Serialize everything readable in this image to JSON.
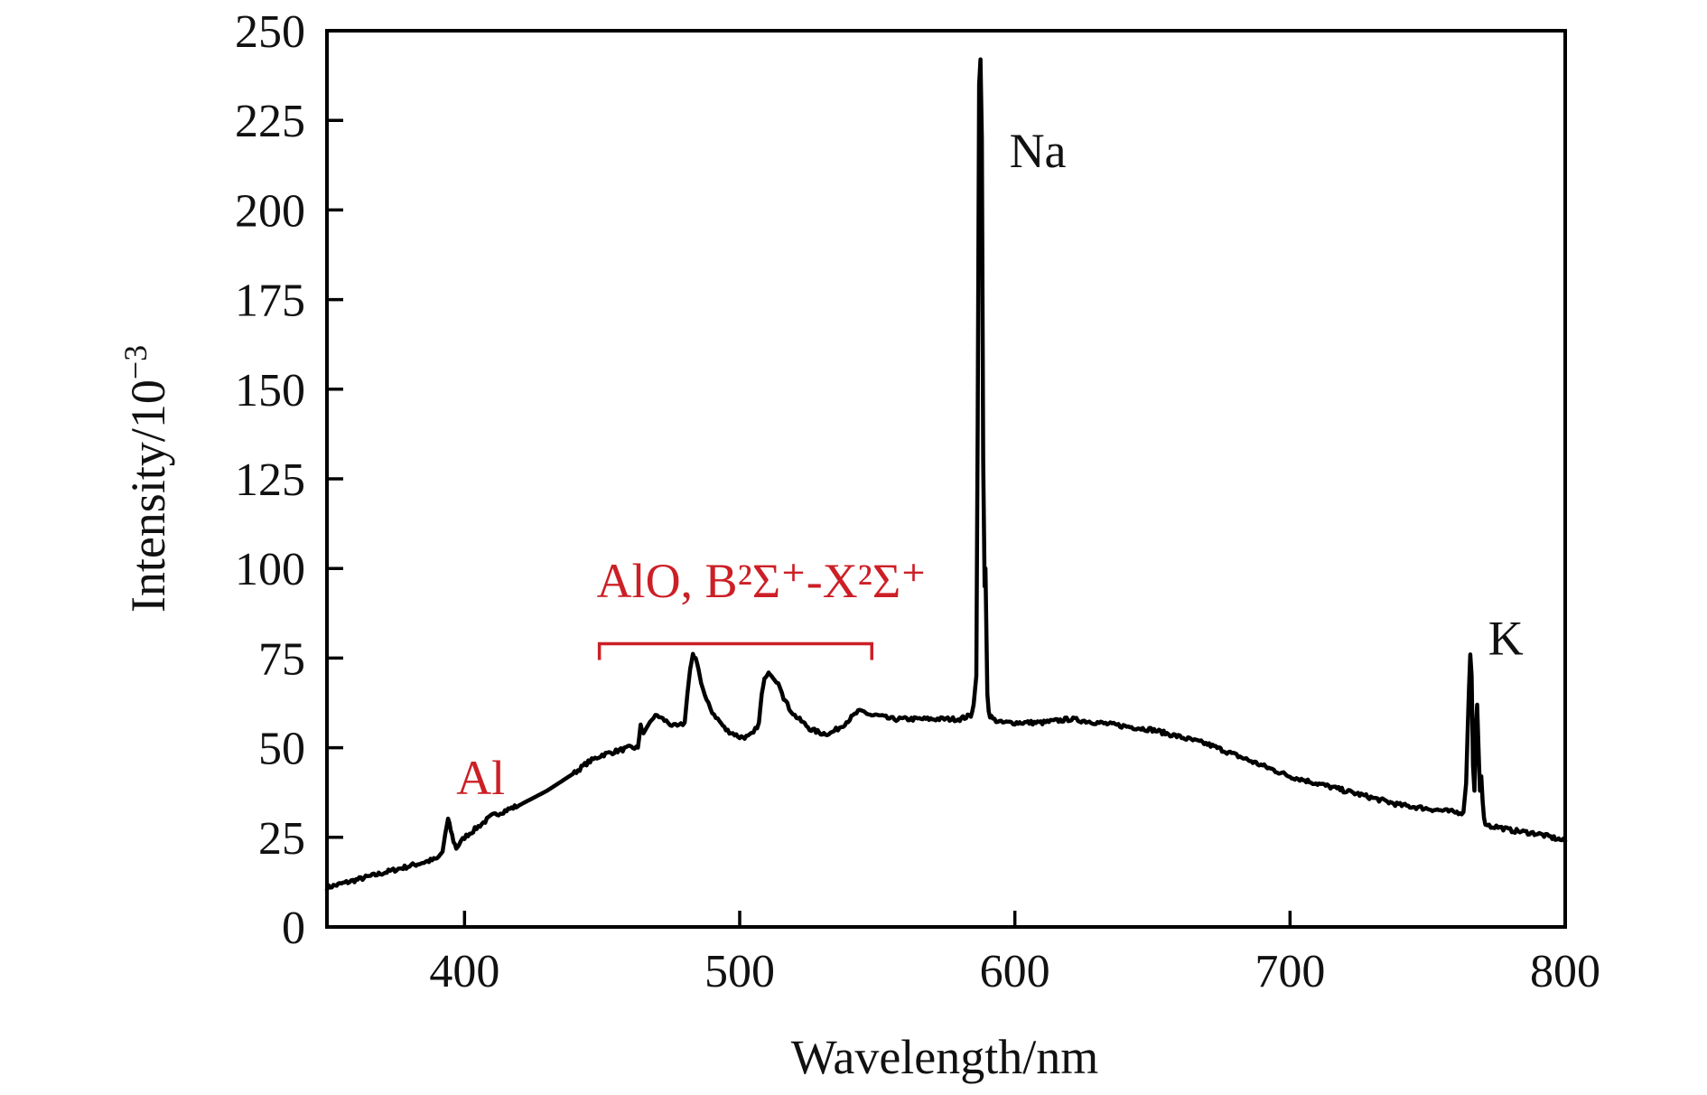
{
  "chart_data": {
    "type": "line",
    "title": "",
    "xlabel": "Wavelength/nm",
    "ylabel": "Intensity/10",
    "ylabel_exponent": "−3",
    "xlim": [
      350,
      800
    ],
    "ylim": [
      0,
      250
    ],
    "x_ticks": [
      400,
      500,
      600,
      700,
      800
    ],
    "y_ticks": [
      0,
      25,
      50,
      75,
      100,
      125,
      150,
      175,
      200,
      225,
      250
    ],
    "grid": false,
    "legend": "none",
    "line_color": "#000000",
    "annotation_color": "#cc1f26",
    "annotations": [
      {
        "id": "na",
        "text": "Na",
        "x": 598,
        "y": 212,
        "color": "#111111"
      },
      {
        "id": "k",
        "text": "K",
        "x": 772,
        "y": 76,
        "color": "#111111"
      },
      {
        "id": "al",
        "text": "Al",
        "x": 397,
        "y": 37,
        "color": "#cc1f26"
      },
      {
        "id": "alo",
        "text": "AlO, B²Σ⁺-X²Σ⁺",
        "x": 448,
        "y": 92,
        "color": "#cc1f26",
        "bracket": [
          449,
          548
        ],
        "bracket_y": 79
      }
    ],
    "series": [
      {
        "x": [
          350,
          360,
          370,
          380,
          390,
          392,
          393,
          394,
          395,
          396,
          397,
          398,
          400,
          405,
          410,
          420,
          430,
          440,
          445,
          450,
          455,
          460,
          463,
          464,
          465,
          468,
          470,
          472,
          474,
          476,
          478,
          480,
          481,
          482,
          483,
          484,
          485,
          486,
          488,
          490,
          492,
          495,
          500,
          503,
          505,
          507,
          508,
          509,
          510,
          511,
          512,
          514,
          516,
          518,
          520,
          523,
          526,
          530,
          533,
          535,
          537,
          540,
          543,
          545,
          548,
          550,
          555,
          560,
          570,
          575,
          580,
          584,
          585,
          586,
          586.5,
          587,
          587.5,
          588,
          588.5,
          589,
          589.3,
          589.6,
          590,
          590.5,
          591,
          592,
          595,
          600,
          610,
          620,
          630,
          640,
          650,
          660,
          670,
          680,
          690,
          700,
          710,
          720,
          730,
          740,
          750,
          760,
          763,
          764,
          765,
          765.5,
          766,
          766.5,
          767,
          767.5,
          768,
          768.5,
          769,
          769.5,
          770,
          770.5,
          771,
          773,
          775,
          780,
          790,
          800
        ],
        "y": [
          11,
          13,
          15,
          17,
          19,
          21,
          26,
          30,
          27,
          24,
          22,
          23,
          25,
          28,
          31,
          34,
          38,
          43,
          46,
          48,
          49,
          50,
          50,
          56,
          54,
          58,
          59,
          58,
          57,
          56,
          56,
          57,
          65,
          72,
          76,
          75,
          72,
          68,
          63,
          60,
          58,
          55,
          53,
          53,
          54,
          57,
          65,
          69,
          70,
          71,
          70,
          68,
          64,
          61,
          59,
          57,
          55,
          54,
          54,
          55,
          56,
          58,
          60,
          60,
          59,
          59,
          58,
          58,
          58,
          58,
          58,
          59,
          62,
          70,
          140,
          235,
          242,
          220,
          130,
          95,
          100,
          85,
          65,
          60,
          59,
          58,
          57,
          57,
          57,
          58,
          57,
          56,
          55,
          53,
          51,
          48,
          45,
          42,
          40,
          38,
          36,
          34,
          33,
          32,
          32,
          40,
          66,
          76,
          70,
          45,
          38,
          55,
          62,
          50,
          38,
          42,
          35,
          30,
          29,
          28,
          28,
          27,
          26,
          24
        ]
      }
    ]
  }
}
